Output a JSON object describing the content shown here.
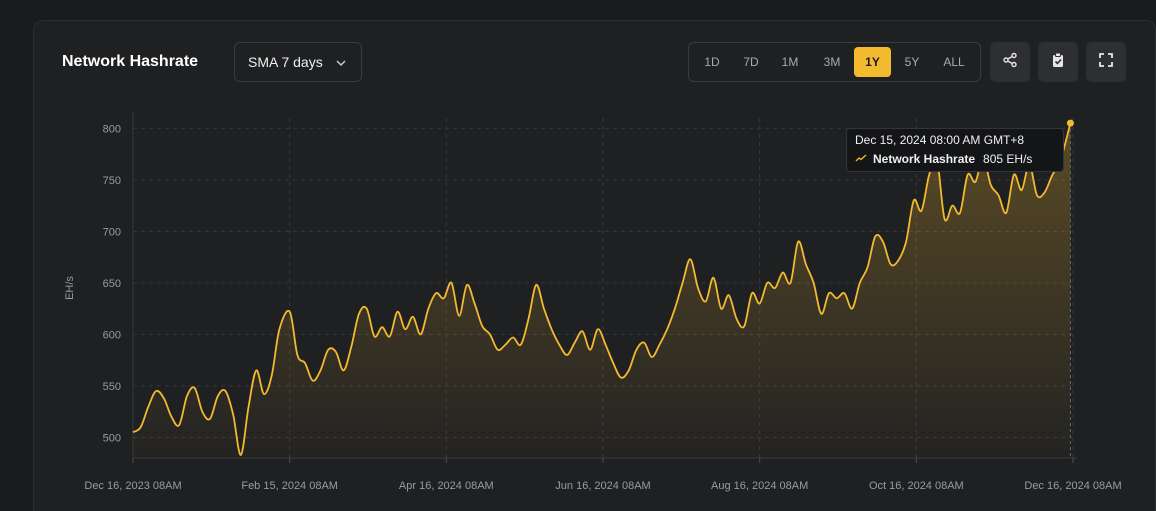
{
  "header": {
    "title": "Network Hashrate",
    "sma_label": "SMA 7 days",
    "ranges": [
      "1D",
      "7D",
      "1M",
      "3M",
      "1Y",
      "5Y",
      "ALL"
    ],
    "active_range": "1Y",
    "accent": "#f3b92f"
  },
  "icons": [
    "share-icon",
    "copy-icon",
    "fullscreen-icon",
    "chevron-down-icon"
  ],
  "tooltip": {
    "date": "Dec 15, 2024 08:00 AM GMT+8",
    "series": "Network Hashrate",
    "value": "805 EH/s"
  },
  "chart_data": {
    "type": "area",
    "title": "Network Hashrate",
    "ylabel": "EH/s",
    "xlabel": "",
    "ylim": [
      480,
      810
    ],
    "yticks": [
      500,
      550,
      600,
      650,
      700,
      750,
      800
    ],
    "xticks": [
      "Dec 16, 2023 08AM",
      "Feb 15, 2024 08AM",
      "Apr 16, 2024 08AM",
      "Jun 16, 2024 08AM",
      "Aug 16, 2024 08AM",
      "Oct 16, 2024 08AM",
      "Dec 16, 2024 08AM"
    ],
    "grid": true,
    "series": [
      {
        "name": "Network Hashrate",
        "color": "#f3b92f",
        "points": [
          [
            "2023-12-16",
            505
          ],
          [
            "2023-12-19",
            510
          ],
          [
            "2023-12-22",
            530
          ],
          [
            "2023-12-25",
            545
          ],
          [
            "2023-12-28",
            538
          ],
          [
            "2023-12-31",
            520
          ],
          [
            "2024-01-03",
            512
          ],
          [
            "2024-01-06",
            540
          ],
          [
            "2024-01-09",
            548
          ],
          [
            "2024-01-12",
            525
          ],
          [
            "2024-01-15",
            518
          ],
          [
            "2024-01-18",
            540
          ],
          [
            "2024-01-21",
            545
          ],
          [
            "2024-01-24",
            522
          ],
          [
            "2024-01-27",
            483
          ],
          [
            "2024-01-30",
            530
          ],
          [
            "2024-02-02",
            565
          ],
          [
            "2024-02-05",
            542
          ],
          [
            "2024-02-08",
            560
          ],
          [
            "2024-02-11",
            605
          ],
          [
            "2024-02-15",
            622
          ],
          [
            "2024-02-18",
            580
          ],
          [
            "2024-02-21",
            572
          ],
          [
            "2024-02-24",
            555
          ],
          [
            "2024-02-27",
            565
          ],
          [
            "2024-03-01",
            585
          ],
          [
            "2024-03-04",
            583
          ],
          [
            "2024-03-07",
            565
          ],
          [
            "2024-03-10",
            588
          ],
          [
            "2024-03-13",
            620
          ],
          [
            "2024-03-16",
            625
          ],
          [
            "2024-03-19",
            598
          ],
          [
            "2024-03-22",
            607
          ],
          [
            "2024-03-25",
            598
          ],
          [
            "2024-03-28",
            622
          ],
          [
            "2024-03-31",
            605
          ],
          [
            "2024-04-03",
            617
          ],
          [
            "2024-04-06",
            600
          ],
          [
            "2024-04-09",
            625
          ],
          [
            "2024-04-12",
            640
          ],
          [
            "2024-04-15",
            635
          ],
          [
            "2024-04-18",
            650
          ],
          [
            "2024-04-21",
            618
          ],
          [
            "2024-04-24",
            648
          ],
          [
            "2024-04-27",
            630
          ],
          [
            "2024-04-30",
            608
          ],
          [
            "2024-05-03",
            600
          ],
          [
            "2024-05-06",
            585
          ],
          [
            "2024-05-09",
            590
          ],
          [
            "2024-05-12",
            597
          ],
          [
            "2024-05-15",
            590
          ],
          [
            "2024-05-18",
            615
          ],
          [
            "2024-05-21",
            648
          ],
          [
            "2024-05-24",
            625
          ],
          [
            "2024-05-27",
            605
          ],
          [
            "2024-05-30",
            590
          ],
          [
            "2024-06-02",
            580
          ],
          [
            "2024-06-05",
            592
          ],
          [
            "2024-06-08",
            603
          ],
          [
            "2024-06-11",
            585
          ],
          [
            "2024-06-14",
            605
          ],
          [
            "2024-06-17",
            590
          ],
          [
            "2024-06-20",
            572
          ],
          [
            "2024-06-23",
            558
          ],
          [
            "2024-06-26",
            565
          ],
          [
            "2024-06-29",
            585
          ],
          [
            "2024-07-02",
            592
          ],
          [
            "2024-07-05",
            578
          ],
          [
            "2024-07-08",
            590
          ],
          [
            "2024-07-11",
            605
          ],
          [
            "2024-07-14",
            625
          ],
          [
            "2024-07-17",
            650
          ],
          [
            "2024-07-20",
            673
          ],
          [
            "2024-07-23",
            645
          ],
          [
            "2024-07-26",
            632
          ],
          [
            "2024-07-29",
            655
          ],
          [
            "2024-08-01",
            625
          ],
          [
            "2024-08-04",
            638
          ],
          [
            "2024-08-07",
            615
          ],
          [
            "2024-08-10",
            608
          ],
          [
            "2024-08-13",
            640
          ],
          [
            "2024-08-16",
            630
          ],
          [
            "2024-08-19",
            650
          ],
          [
            "2024-08-22",
            645
          ],
          [
            "2024-08-25",
            660
          ],
          [
            "2024-08-28",
            650
          ],
          [
            "2024-08-31",
            690
          ],
          [
            "2024-09-03",
            668
          ],
          [
            "2024-09-06",
            650
          ],
          [
            "2024-09-09",
            620
          ],
          [
            "2024-09-12",
            640
          ],
          [
            "2024-09-15",
            635
          ],
          [
            "2024-09-18",
            640
          ],
          [
            "2024-09-21",
            625
          ],
          [
            "2024-09-24",
            650
          ],
          [
            "2024-09-27",
            665
          ],
          [
            "2024-09-30",
            695
          ],
          [
            "2024-10-03",
            690
          ],
          [
            "2024-10-06",
            668
          ],
          [
            "2024-10-09",
            672
          ],
          [
            "2024-10-12",
            690
          ],
          [
            "2024-10-15",
            730
          ],
          [
            "2024-10-18",
            720
          ],
          [
            "2024-10-21",
            755
          ],
          [
            "2024-10-24",
            770
          ],
          [
            "2024-10-27",
            712
          ],
          [
            "2024-10-30",
            725
          ],
          [
            "2024-11-02",
            718
          ],
          [
            "2024-11-05",
            755
          ],
          [
            "2024-11-08",
            748
          ],
          [
            "2024-11-11",
            772
          ],
          [
            "2024-11-14",
            745
          ],
          [
            "2024-11-17",
            735
          ],
          [
            "2024-11-20",
            718
          ],
          [
            "2024-11-23",
            755
          ],
          [
            "2024-11-26",
            740
          ],
          [
            "2024-11-29",
            765
          ],
          [
            "2024-12-02",
            735
          ],
          [
            "2024-12-05",
            738
          ],
          [
            "2024-12-08",
            755
          ],
          [
            "2024-12-11",
            768
          ],
          [
            "2024-12-15",
            805
          ]
        ]
      }
    ]
  }
}
